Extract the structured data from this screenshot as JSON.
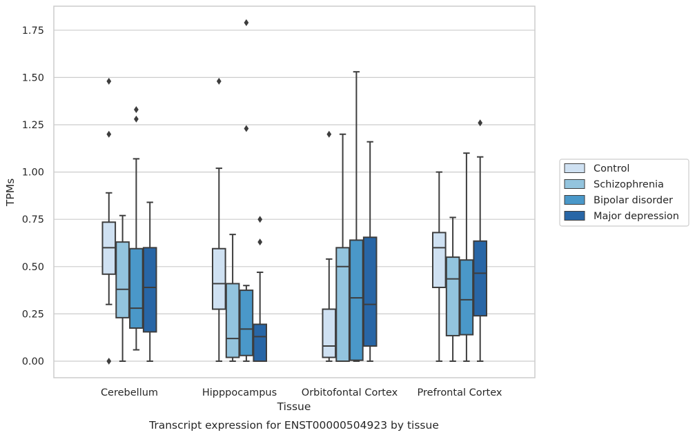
{
  "chart_data": {
    "type": "box",
    "title": "",
    "caption": "Transcript expression for ENST00000504923 by tissue",
    "xlabel": "Tissue",
    "ylabel": "TPMs",
    "ylim": [
      -0.085,
      1.88
    ],
    "yticks": [
      0.0,
      0.25,
      0.5,
      0.75,
      1.0,
      1.25,
      1.5,
      1.75
    ],
    "ytick_labels": [
      "0.00",
      "0.25",
      "0.50",
      "0.75",
      "1.00",
      "1.25",
      "1.50",
      "1.75"
    ],
    "grid": "horizontal",
    "legend_position": "right",
    "categories": [
      "Cerebellum",
      "Hipppocampus",
      "Orbitofontal Cortex",
      "Prefrontal Cortex"
    ],
    "series": [
      {
        "name": "Control",
        "color": "#cfe1f2",
        "boxes": [
          {
            "whisker_low": 0.3,
            "q1": 0.46,
            "median": 0.6,
            "q3": 0.735,
            "whisker_high": 0.89,
            "outliers": [
              0.0,
              1.2,
              1.48
            ]
          },
          {
            "whisker_low": 0.0,
            "q1": 0.275,
            "median": 0.41,
            "q3": 0.595,
            "whisker_high": 1.02,
            "outliers": [
              1.48
            ]
          },
          {
            "whisker_low": 0.0,
            "q1": 0.02,
            "median": 0.08,
            "q3": 0.275,
            "whisker_high": 0.54,
            "outliers": [
              1.2
            ]
          },
          {
            "whisker_low": 0.0,
            "q1": 0.39,
            "median": 0.6,
            "q3": 0.68,
            "whisker_high": 1.0,
            "outliers": []
          }
        ]
      },
      {
        "name": "Schizophrenia",
        "color": "#93c4de",
        "boxes": [
          {
            "whisker_low": 0.0,
            "q1": 0.23,
            "median": 0.38,
            "q3": 0.63,
            "whisker_high": 0.77,
            "outliers": []
          },
          {
            "whisker_low": 0.0,
            "q1": 0.02,
            "median": 0.12,
            "q3": 0.41,
            "whisker_high": 0.67,
            "outliers": []
          },
          {
            "whisker_low": 0.0,
            "q1": 0.0,
            "median": 0.5,
            "q3": 0.6,
            "whisker_high": 1.2,
            "outliers": []
          },
          {
            "whisker_low": 0.0,
            "q1": 0.135,
            "median": 0.435,
            "q3": 0.55,
            "whisker_high": 0.76,
            "outliers": []
          }
        ]
      },
      {
        "name": "Bipolar disorder",
        "color": "#4a98c9",
        "boxes": [
          {
            "whisker_low": 0.06,
            "q1": 0.175,
            "median": 0.28,
            "q3": 0.595,
            "whisker_high": 1.07,
            "outliers": [
              1.28,
              1.33
            ]
          },
          {
            "whisker_low": 0.0,
            "q1": 0.03,
            "median": 0.17,
            "q3": 0.375,
            "whisker_high": 0.4,
            "outliers": [
              1.23,
              1.79
            ]
          },
          {
            "whisker_low": 0.0,
            "q1": 0.005,
            "median": 0.335,
            "q3": 0.64,
            "whisker_high": 1.53,
            "outliers": []
          },
          {
            "whisker_low": 0.0,
            "q1": 0.14,
            "median": 0.325,
            "q3": 0.535,
            "whisker_high": 1.1,
            "outliers": []
          }
        ]
      },
      {
        "name": "Major depression",
        "color": "#2866a6",
        "boxes": [
          {
            "whisker_low": 0.0,
            "q1": 0.155,
            "median": 0.39,
            "q3": 0.6,
            "whisker_high": 0.84,
            "outliers": []
          },
          {
            "whisker_low": 0.0,
            "q1": 0.0,
            "median": 0.13,
            "q3": 0.195,
            "whisker_high": 0.47,
            "outliers": [
              0.63,
              0.75
            ]
          },
          {
            "whisker_low": 0.0,
            "q1": 0.08,
            "median": 0.3,
            "q3": 0.655,
            "whisker_high": 1.16,
            "outliers": []
          },
          {
            "whisker_low": 0.0,
            "q1": 0.24,
            "median": 0.465,
            "q3": 0.635,
            "whisker_high": 1.08,
            "outliers": [
              1.26
            ]
          }
        ]
      }
    ]
  }
}
